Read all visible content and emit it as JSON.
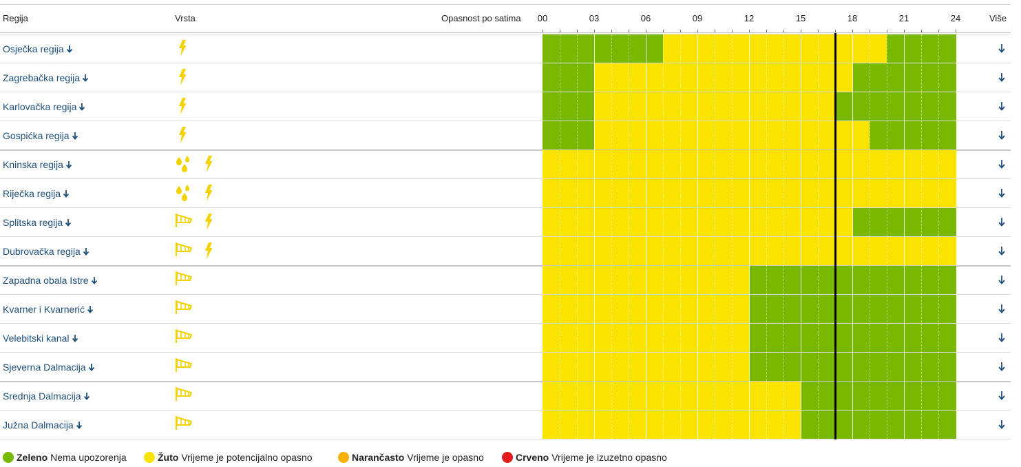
{
  "header": {
    "region": "Regija",
    "type": "Vrsta",
    "hourly": "Opasnost po satima",
    "more": "Više",
    "hours": [
      "00",
      "03",
      "06",
      "09",
      "12",
      "15",
      "18",
      "21",
      "24"
    ]
  },
  "current_time_hour": 17,
  "colors": {
    "green": "#78b800",
    "yellow": "#fbe300",
    "orange": "#f6b100",
    "red": "#e11b1b",
    "link": "#1d4f7a",
    "icon_yellow": "#f3d200"
  },
  "regions": [
    {
      "name": "Osječka regija",
      "arrow": "🡓",
      "types": [
        "lightning-icon"
      ],
      "levels": [
        "green",
        "green",
        "green",
        "green",
        "green",
        "green",
        "green",
        "yellow",
        "yellow",
        "yellow",
        "yellow",
        "yellow",
        "yellow",
        "yellow",
        "yellow",
        "yellow",
        "yellow",
        "yellow",
        "yellow",
        "yellow",
        "green",
        "green",
        "green",
        "green"
      ]
    },
    {
      "name": "Zagrebačka regija",
      "arrow": "🡓",
      "types": [
        "lightning-icon"
      ],
      "levels": [
        "green",
        "green",
        "green",
        "yellow",
        "yellow",
        "yellow",
        "yellow",
        "yellow",
        "yellow",
        "yellow",
        "yellow",
        "yellow",
        "yellow",
        "yellow",
        "yellow",
        "yellow",
        "yellow",
        "yellow",
        "green",
        "green",
        "green",
        "green",
        "green",
        "green"
      ]
    },
    {
      "name": "Karlovačka regija",
      "arrow": "🡓",
      "types": [
        "lightning-icon"
      ],
      "levels": [
        "green",
        "green",
        "green",
        "yellow",
        "yellow",
        "yellow",
        "yellow",
        "yellow",
        "yellow",
        "yellow",
        "yellow",
        "yellow",
        "yellow",
        "yellow",
        "yellow",
        "yellow",
        "yellow",
        "green",
        "green",
        "green",
        "green",
        "green",
        "green",
        "green"
      ]
    },
    {
      "name": "Gospićka regija",
      "arrow": "🡓",
      "types": [
        "lightning-icon"
      ],
      "levels": [
        "green",
        "green",
        "green",
        "yellow",
        "yellow",
        "yellow",
        "yellow",
        "yellow",
        "yellow",
        "yellow",
        "yellow",
        "yellow",
        "yellow",
        "yellow",
        "yellow",
        "yellow",
        "yellow",
        "yellow",
        "yellow",
        "green",
        "green",
        "green",
        "green",
        "green"
      ]
    },
    {
      "name": "Kninska regija",
      "arrow": "🡓",
      "types": [
        "rain-icon",
        "lightning-icon"
      ],
      "levels": [
        "yellow",
        "yellow",
        "yellow",
        "yellow",
        "yellow",
        "yellow",
        "yellow",
        "yellow",
        "yellow",
        "yellow",
        "yellow",
        "yellow",
        "yellow",
        "yellow",
        "yellow",
        "yellow",
        "yellow",
        "yellow",
        "yellow",
        "yellow",
        "yellow",
        "yellow",
        "yellow",
        "yellow"
      ]
    },
    {
      "name": "Riječka regija",
      "arrow": "🡓",
      "types": [
        "rain-icon",
        "lightning-icon"
      ],
      "levels": [
        "yellow",
        "yellow",
        "yellow",
        "yellow",
        "yellow",
        "yellow",
        "yellow",
        "yellow",
        "yellow",
        "yellow",
        "yellow",
        "yellow",
        "yellow",
        "yellow",
        "yellow",
        "yellow",
        "yellow",
        "yellow",
        "yellow",
        "yellow",
        "yellow",
        "yellow",
        "yellow",
        "yellow"
      ]
    },
    {
      "name": "Splitska regija",
      "arrow": "🡓",
      "types": [
        "wind-icon",
        "lightning-icon"
      ],
      "levels": [
        "yellow",
        "yellow",
        "yellow",
        "yellow",
        "yellow",
        "yellow",
        "yellow",
        "yellow",
        "yellow",
        "yellow",
        "yellow",
        "yellow",
        "yellow",
        "yellow",
        "yellow",
        "yellow",
        "yellow",
        "yellow",
        "green",
        "green",
        "green",
        "green",
        "green",
        "green"
      ]
    },
    {
      "name": "Dubrovačka regija",
      "arrow": "🡓",
      "types": [
        "wind-icon",
        "lightning-icon"
      ],
      "levels": [
        "yellow",
        "yellow",
        "yellow",
        "yellow",
        "yellow",
        "yellow",
        "yellow",
        "yellow",
        "yellow",
        "yellow",
        "yellow",
        "yellow",
        "yellow",
        "yellow",
        "yellow",
        "yellow",
        "yellow",
        "yellow",
        "yellow",
        "yellow",
        "yellow",
        "yellow",
        "yellow",
        "yellow"
      ]
    },
    {
      "name": "Zapadna obala Istre",
      "arrow": "🡓",
      "types": [
        "wind-icon"
      ],
      "levels": [
        "yellow",
        "yellow",
        "yellow",
        "yellow",
        "yellow",
        "yellow",
        "yellow",
        "yellow",
        "yellow",
        "yellow",
        "yellow",
        "yellow",
        "green",
        "green",
        "green",
        "green",
        "green",
        "green",
        "green",
        "green",
        "green",
        "green",
        "green",
        "green"
      ]
    },
    {
      "name": "Kvarner i Kvarnerić",
      "arrow": "🡓",
      "types": [
        "wind-icon"
      ],
      "levels": [
        "yellow",
        "yellow",
        "yellow",
        "yellow",
        "yellow",
        "yellow",
        "yellow",
        "yellow",
        "yellow",
        "yellow",
        "yellow",
        "yellow",
        "green",
        "green",
        "green",
        "green",
        "green",
        "green",
        "green",
        "green",
        "green",
        "green",
        "green",
        "green"
      ]
    },
    {
      "name": "Velebitski kanal",
      "arrow": "🡓",
      "types": [
        "wind-icon"
      ],
      "levels": [
        "yellow",
        "yellow",
        "yellow",
        "yellow",
        "yellow",
        "yellow",
        "yellow",
        "yellow",
        "yellow",
        "yellow",
        "yellow",
        "yellow",
        "green",
        "green",
        "green",
        "green",
        "green",
        "green",
        "green",
        "green",
        "green",
        "green",
        "green",
        "green"
      ]
    },
    {
      "name": "Sjeverna Dalmacija",
      "arrow": "🡓",
      "types": [
        "wind-icon"
      ],
      "levels": [
        "yellow",
        "yellow",
        "yellow",
        "yellow",
        "yellow",
        "yellow",
        "yellow",
        "yellow",
        "yellow",
        "yellow",
        "yellow",
        "yellow",
        "green",
        "green",
        "green",
        "green",
        "green",
        "green",
        "green",
        "green",
        "green",
        "green",
        "green",
        "green"
      ]
    },
    {
      "name": "Srednja Dalmacija",
      "arrow": "🡓",
      "types": [
        "wind-icon"
      ],
      "levels": [
        "yellow",
        "yellow",
        "yellow",
        "yellow",
        "yellow",
        "yellow",
        "yellow",
        "yellow",
        "yellow",
        "yellow",
        "yellow",
        "yellow",
        "yellow",
        "yellow",
        "yellow",
        "green",
        "green",
        "green",
        "green",
        "green",
        "green",
        "green",
        "green",
        "green"
      ]
    },
    {
      "name": "Južna Dalmacija",
      "arrow": "🡓",
      "types": [
        "wind-icon"
      ],
      "levels": [
        "yellow",
        "yellow",
        "yellow",
        "yellow",
        "yellow",
        "yellow",
        "yellow",
        "yellow",
        "yellow",
        "yellow",
        "yellow",
        "yellow",
        "yellow",
        "yellow",
        "yellow",
        "green",
        "green",
        "green",
        "green",
        "green",
        "green",
        "green",
        "green",
        "green"
      ]
    }
  ],
  "group_ends": [
    3,
    7,
    11
  ],
  "legend": [
    {
      "color": "#78b800",
      "label": "Zeleno",
      "desc": "Nema upozorenja"
    },
    {
      "color": "#fbe300",
      "label": "Žuto",
      "desc": "Vrijeme je potencijalno opasno"
    },
    {
      "color": "#f6b100",
      "label": "Narančasto",
      "desc": "Vrijeme je opasno"
    },
    {
      "color": "#e11b1b",
      "label": "Crveno",
      "desc": "Vrijeme je izuzetno opasno"
    }
  ]
}
